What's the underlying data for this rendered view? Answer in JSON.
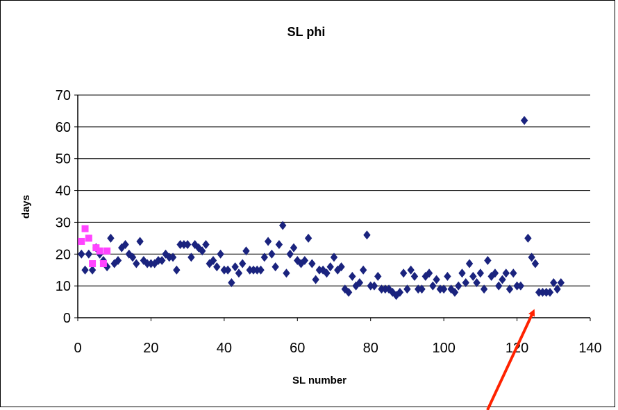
{
  "chart_data": {
    "type": "scatter",
    "title": "SL phi",
    "xlabel": "SL number",
    "ylabel": "days",
    "xlim": [
      0,
      140
    ],
    "ylim": [
      0,
      70
    ],
    "xticks": [
      "0",
      "20",
      "40",
      "60",
      "80",
      "100",
      "120",
      "140"
    ],
    "yticks": [
      "0",
      "10",
      "20",
      "30",
      "40",
      "50",
      "60",
      "70"
    ],
    "grid": "horizontal",
    "legend": "none",
    "series": [
      {
        "color": "#1a237e",
        "marker": "diamond",
        "points": [
          [
            1,
            20
          ],
          [
            2,
            15
          ],
          [
            3,
            20
          ],
          [
            4,
            15
          ],
          [
            5,
            22
          ],
          [
            6,
            20
          ],
          [
            7,
            18
          ],
          [
            8,
            16
          ],
          [
            9,
            25
          ],
          [
            10,
            17
          ],
          [
            11,
            18
          ],
          [
            12,
            22
          ],
          [
            13,
            23
          ],
          [
            14,
            20
          ],
          [
            15,
            19
          ],
          [
            16,
            17
          ],
          [
            17,
            24
          ],
          [
            18,
            18
          ],
          [
            19,
            17
          ],
          [
            20,
            17
          ],
          [
            21,
            17
          ],
          [
            22,
            18
          ],
          [
            23,
            18
          ],
          [
            24,
            20
          ],
          [
            25,
            19
          ],
          [
            26,
            19
          ],
          [
            27,
            15
          ],
          [
            28,
            23
          ],
          [
            29,
            23
          ],
          [
            30,
            23
          ],
          [
            31,
            19
          ],
          [
            32,
            23
          ],
          [
            33,
            22
          ],
          [
            34,
            21
          ],
          [
            35,
            23
          ],
          [
            36,
            17
          ],
          [
            37,
            18
          ],
          [
            38,
            16
          ],
          [
            39,
            20
          ],
          [
            40,
            15
          ],
          [
            41,
            15
          ],
          [
            42,
            11
          ],
          [
            43,
            16
          ],
          [
            44,
            14
          ],
          [
            45,
            17
          ],
          [
            46,
            21
          ],
          [
            47,
            15
          ],
          [
            48,
            15
          ],
          [
            49,
            15
          ],
          [
            50,
            15
          ],
          [
            51,
            19
          ],
          [
            52,
            24
          ],
          [
            53,
            20
          ],
          [
            54,
            16
          ],
          [
            55,
            23
          ],
          [
            56,
            29
          ],
          [
            57,
            14
          ],
          [
            58,
            20
          ],
          [
            59,
            22
          ],
          [
            60,
            18
          ],
          [
            61,
            17
          ],
          [
            62,
            18
          ],
          [
            63,
            25
          ],
          [
            64,
            17
          ],
          [
            65,
            12
          ],
          [
            66,
            15
          ],
          [
            67,
            15
          ],
          [
            68,
            14
          ],
          [
            69,
            16
          ],
          [
            70,
            19
          ],
          [
            71,
            15
          ],
          [
            72,
            16
          ],
          [
            73,
            9
          ],
          [
            74,
            8
          ],
          [
            75,
            13
          ],
          [
            76,
            10
          ],
          [
            77,
            11
          ],
          [
            78,
            15
          ],
          [
            79,
            26
          ],
          [
            80,
            10
          ],
          [
            81,
            10
          ],
          [
            82,
            13
          ],
          [
            83,
            9
          ],
          [
            84,
            9
          ],
          [
            85,
            9
          ],
          [
            86,
            8
          ],
          [
            87,
            7
          ],
          [
            88,
            8
          ],
          [
            89,
            14
          ],
          [
            90,
            9
          ],
          [
            91,
            15
          ],
          [
            92,
            13
          ],
          [
            93,
            9
          ],
          [
            94,
            9
          ],
          [
            95,
            13
          ],
          [
            96,
            14
          ],
          [
            97,
            10
          ],
          [
            98,
            12
          ],
          [
            99,
            9
          ],
          [
            100,
            9
          ],
          [
            101,
            13
          ],
          [
            102,
            9
          ],
          [
            103,
            8
          ],
          [
            104,
            10
          ],
          [
            105,
            14
          ],
          [
            106,
            11
          ],
          [
            107,
            17
          ],
          [
            108,
            13
          ],
          [
            109,
            11
          ],
          [
            110,
            14
          ],
          [
            111,
            9
          ],
          [
            112,
            18
          ],
          [
            113,
            13
          ],
          [
            114,
            14
          ],
          [
            115,
            10
          ],
          [
            116,
            12
          ],
          [
            117,
            14
          ],
          [
            118,
            9
          ],
          [
            119,
            14
          ],
          [
            120,
            10
          ],
          [
            121,
            10
          ],
          [
            122,
            62
          ],
          [
            123,
            25
          ],
          [
            124,
            19
          ],
          [
            125,
            17
          ],
          [
            126,
            8
          ],
          [
            127,
            8
          ],
          [
            128,
            8
          ],
          [
            129,
            8
          ],
          [
            130,
            11
          ],
          [
            131,
            9
          ],
          [
            132,
            11
          ]
        ]
      },
      {
        "color": "#ff44ff",
        "marker": "square",
        "points": [
          [
            1,
            24
          ],
          [
            2,
            28
          ],
          [
            3,
            25
          ],
          [
            4,
            17
          ],
          [
            5,
            22
          ],
          [
            6,
            21
          ],
          [
            7,
            17
          ],
          [
            8,
            21
          ]
        ]
      }
    ],
    "annotation": {
      "type": "arrow",
      "color": "#ff2200",
      "points_to": [
        124,
        0
      ]
    }
  }
}
